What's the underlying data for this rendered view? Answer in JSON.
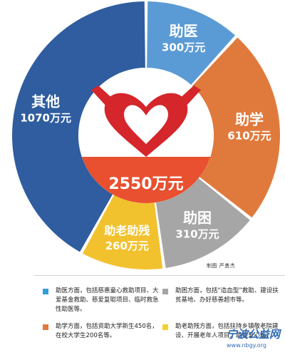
{
  "chart_data": {
    "type": "pie",
    "style": "donut",
    "total_label": "2550万元",
    "slices": [
      {
        "label": "助医",
        "value_label": "300万元",
        "value": 300,
        "color": "#5b9bd5"
      },
      {
        "label": "助学",
        "value_label": "610万元",
        "value": 610,
        "color": "#e07a3c"
      },
      {
        "label": "助困",
        "value_label": "310万元",
        "value": 310,
        "color": "#a6a6a6"
      },
      {
        "label": "助老助残",
        "value_label": "260万元",
        "value": 260,
        "color": "#f2c12e"
      },
      {
        "label": "其他",
        "value_label": "1070万元",
        "value": 1070,
        "color": "#2f5d9f"
      }
    ]
  },
  "credit": "制图  严勇杰",
  "legend": [
    {
      "color": "#2f9fd8",
      "text": "助医方面，包括慈惠童心救助项目、大爱基金救助、慈爱复聪项目、临时救急性助医等。"
    },
    {
      "color": "#a6a6a6",
      "text": "助困方面，包括“造血型”救助、建设扶贫基地、办好慈善超市等。"
    },
    {
      "color": "#e07a3c",
      "text": "助学方面，包括资助大学新生450名，在校大学生200名等。"
    },
    {
      "color": "#f2d22e",
      "text": "助老助残方面，包括扶持乡镇敬老院建设、开展老年人项目、助残爱心等。"
    }
  ],
  "watermark": {
    "name": "宁波公益网",
    "url": "www.nbgy.org"
  },
  "center_icon": "heart-hands-icon"
}
